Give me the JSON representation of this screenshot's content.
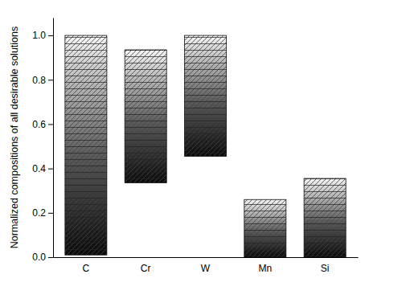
{
  "chart_data": {
    "type": "range_bar",
    "y_label": "Normalized compositions of all desirable solutions",
    "categories": [
      "C",
      "Cr",
      "W",
      "Mn",
      "Si"
    ],
    "low": [
      0.01,
      0.335,
      0.455,
      0.0,
      0.0
    ],
    "high": [
      1.0,
      0.935,
      1.0,
      0.26,
      0.355
    ],
    "ylim": [
      0,
      1.08
    ],
    "yticks": [
      {
        "value": 0,
        "label": "0.0"
      },
      {
        "value": 0.2,
        "label": "0.2"
      },
      {
        "value": 0.4,
        "label": "0.4"
      },
      {
        "value": 0.6,
        "label": "0.6"
      },
      {
        "value": 0.8,
        "label": "0.8"
      },
      {
        "value": 1,
        "label": "1.0"
      }
    ],
    "grid": false
  }
}
